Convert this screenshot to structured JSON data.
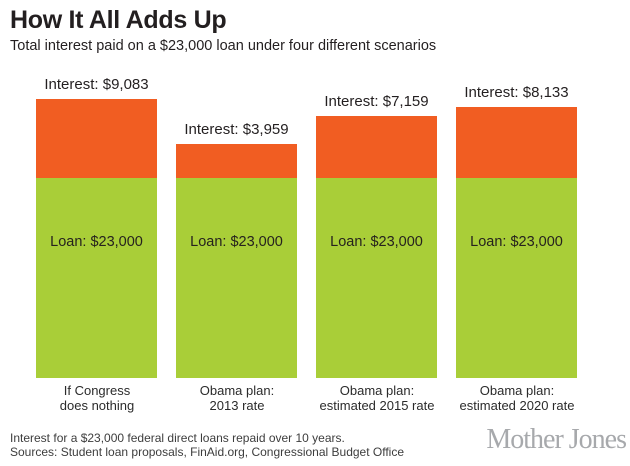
{
  "header": {
    "title": "How It All Adds Up",
    "subtitle": "Total interest paid on a $23,000 loan under four different scenarios"
  },
  "chart_data": {
    "type": "bar",
    "stacked": true,
    "currency": "USD",
    "title": "How It All Adds Up",
    "subtitle": "Total interest paid on a $23,000 loan under four different scenarios",
    "categories": [
      "If Congress does nothing",
      "Obama plan: 2013 rate",
      "Obama plan: estimated 2015 rate",
      "Obama plan: estimated 2020 rate"
    ],
    "category_lines": [
      [
        "If Congress",
        "does nothing"
      ],
      [
        "Obama plan:",
        "2013 rate"
      ],
      [
        "Obama plan:",
        "estimated 2015 rate"
      ],
      [
        "Obama plan:",
        "estimated 2020 rate"
      ]
    ],
    "series": [
      {
        "name": "Loan",
        "color": "#a9ce38",
        "values": [
          23000,
          23000,
          23000,
          23000
        ],
        "labels": [
          "Loan: $23,000",
          "Loan: $23,000",
          "Loan: $23,000",
          "Loan: $23,000"
        ]
      },
      {
        "name": "Interest",
        "color": "#f15d22",
        "values": [
          9083,
          3959,
          7159,
          8133
        ],
        "labels": [
          "Interest: $9,083",
          "Interest: $3,959",
          "Interest: $7,159",
          "Interest: $8,133"
        ]
      }
    ],
    "value_axis": {
      "visible": false,
      "min": 0
    },
    "legend": "none",
    "gridlines": false
  },
  "footer": {
    "note": "Interest for a $23,000 federal direct loans repaid over 10 years.",
    "sources": "Sources: Student loan proposals, FinAid.org, Congressional Budget Office",
    "logo": "Mother Jones"
  },
  "colors": {
    "interest": "#f15d22",
    "loan": "#a9ce38",
    "logo_gray": "#a7a9ac",
    "text": "#231f20"
  }
}
